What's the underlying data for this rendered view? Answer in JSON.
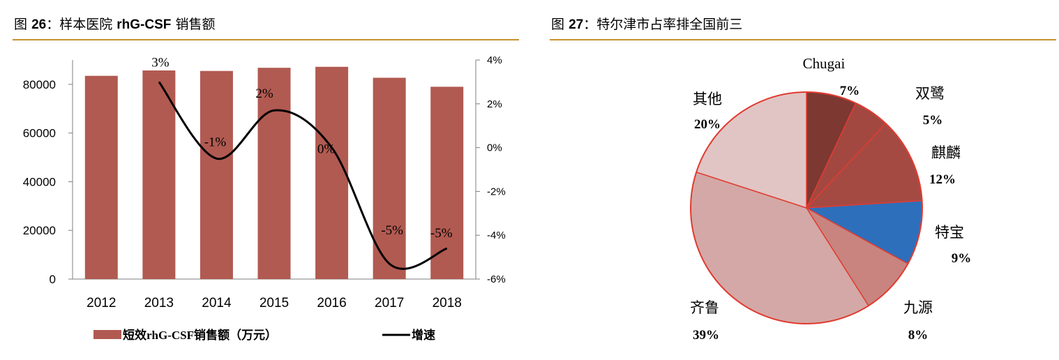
{
  "figure26": {
    "prefix": "图",
    "number": "26",
    "colon": "：",
    "title_part1": "样本医院",
    "title_latin": "rhG-CSF",
    "title_part2": "销售额"
  },
  "figure27": {
    "prefix": "图",
    "number": "27",
    "colon": "：",
    "title": "特尔津市占率排全国前三"
  },
  "colors": {
    "bar": "#b15a51",
    "line": "#000000",
    "rule": "#c8902e",
    "pie_border": "#e03c31"
  },
  "chart_data": [
    {
      "type": "bar",
      "categories": [
        "2012",
        "2013",
        "2014",
        "2015",
        "2016",
        "2017",
        "2018"
      ],
      "series": [
        {
          "name": "短效rhG-CSF销售额（万元）",
          "type": "bar",
          "axis": "left",
          "values": [
            83500,
            85700,
            85500,
            86800,
            87200,
            82700,
            79000
          ]
        },
        {
          "name": "增速",
          "type": "line",
          "axis": "right",
          "values": [
            null,
            3,
            -0.5,
            1.7,
            0,
            -5.3,
            -4.6
          ],
          "labels": [
            "",
            "3%",
            "-1%",
            "2%",
            "0%",
            "-5%",
            "-5%"
          ]
        }
      ],
      "y_left": {
        "min": 0,
        "max": 90000,
        "ticks": [
          0,
          20000,
          40000,
          60000,
          80000
        ],
        "tick_labels": [
          "0",
          "20000",
          "40000",
          "60000",
          "80000"
        ]
      },
      "y_right": {
        "min": -6,
        "max": 4,
        "ticks": [
          -6,
          -4,
          -2,
          0,
          2,
          4
        ],
        "tick_labels": [
          "-6%",
          "-4%",
          "-2%",
          "0%",
          "2%",
          "4%"
        ]
      },
      "legend": {
        "position": "bottom",
        "bar_label": "短效rhG-CSF销售额（万元）",
        "line_label": "增速"
      }
    },
    {
      "type": "pie",
      "slices": [
        {
          "label": "Chugai",
          "pct_label": "7%",
          "value": 7,
          "color": "#7d3832"
        },
        {
          "label": "双鹭",
          "pct_label": "5%",
          "value": 5,
          "color": "#a24840"
        },
        {
          "label": "麒麟",
          "pct_label": "12%",
          "value": 12,
          "color": "#a54a43"
        },
        {
          "label": "特宝",
          "pct_label": "9%",
          "value": 9,
          "color": "#2e6fbb"
        },
        {
          "label": "九源",
          "pct_label": "8%",
          "value": 8,
          "color": "#c9847f"
        },
        {
          "label": "齐鲁",
          "pct_label": "39%",
          "value": 39,
          "color": "#d4a8a6"
        },
        {
          "label": "其他",
          "pct_label": "20%",
          "value": 20,
          "color": "#e1c5c5"
        }
      ]
    }
  ]
}
